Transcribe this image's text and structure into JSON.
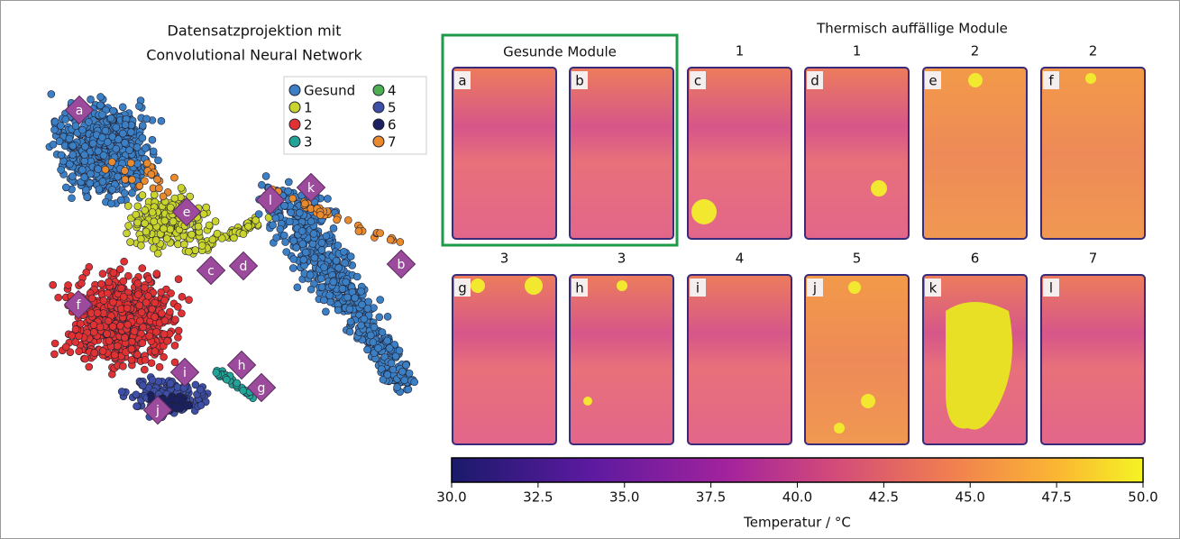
{
  "projection": {
    "title_lines": [
      "Datensatzprojektion mit",
      "Convolutional Neural Network"
    ],
    "legend": [
      {
        "name": "Gesund",
        "color": "#3b7fc4"
      },
      {
        "name": "1",
        "color": "#c9d42c"
      },
      {
        "name": "2",
        "color": "#e03232"
      },
      {
        "name": "3",
        "color": "#22a596"
      },
      {
        "name": "4",
        "color": "#4caf50"
      },
      {
        "name": "5",
        "color": "#3d4fa6"
      },
      {
        "name": "6",
        "color": "#1b2160"
      },
      {
        "name": "7",
        "color": "#e98a2c"
      }
    ],
    "markers": [
      "a",
      "e",
      "c",
      "d",
      "l",
      "k",
      "b",
      "f",
      "i",
      "h",
      "g",
      "j"
    ]
  },
  "modules": {
    "title": "Thermisch auffällige Module",
    "healthy_label": "Gesunde Module",
    "tiles": [
      {
        "letter": "a"
      },
      {
        "letter": "b"
      },
      {
        "letter": "c",
        "label": "1"
      },
      {
        "letter": "d",
        "label": "1"
      },
      {
        "letter": "e",
        "label": "2"
      },
      {
        "letter": "f",
        "label": "2"
      },
      {
        "letter": "g",
        "label": "3"
      },
      {
        "letter": "h",
        "label": "3"
      },
      {
        "letter": "i",
        "label": "4"
      },
      {
        "letter": "j",
        "label": "5"
      },
      {
        "letter": "k",
        "label": "6"
      },
      {
        "letter": "l",
        "label": "7"
      }
    ]
  },
  "colorbar": {
    "label": "Temperatur / °C",
    "range": [
      30,
      50
    ],
    "ticks": [
      {
        "value": 30,
        "label": "30.0"
      },
      {
        "value": 32.5,
        "label": "32.5"
      },
      {
        "value": 35,
        "label": "35.0"
      },
      {
        "value": 37.5,
        "label": "37.5"
      },
      {
        "value": 40,
        "label": "40.0"
      },
      {
        "value": 42.5,
        "label": "42.5"
      },
      {
        "value": 45,
        "label": "45.0"
      },
      {
        "value": 47.5,
        "label": "47.5"
      },
      {
        "value": 50,
        "label": "50.0"
      }
    ]
  }
}
